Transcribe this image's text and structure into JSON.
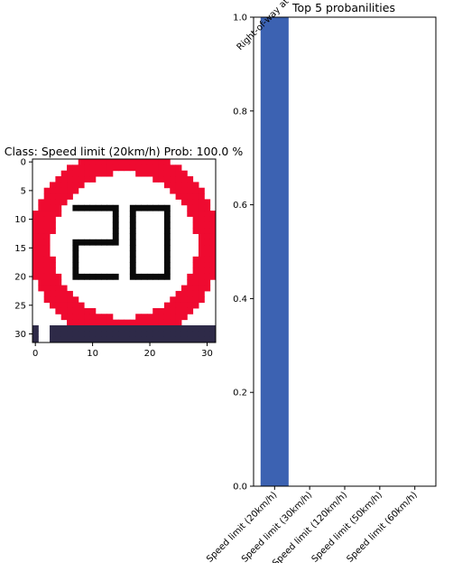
{
  "chart_data": [
    {
      "type": "image",
      "title": "Class: Speed limit (20km/h) Prob: 100.0 %",
      "xlim": [
        -0.5,
        31.5
      ],
      "ylim": [
        31.5,
        -0.5
      ],
      "xticks": [
        0,
        10,
        20,
        30
      ],
      "yticks": [
        0,
        5,
        10,
        15,
        20,
        25,
        30
      ],
      "xtick_labels": [
        "0",
        "10",
        "20",
        "30"
      ],
      "ytick_labels": [
        "0",
        "5",
        "10",
        "15",
        "20",
        "25",
        "30"
      ],
      "image": {
        "shape": [
          32,
          32
        ],
        "content": "red-ringed circular speed limit sign showing the number 20",
        "colors": {
          "ring": "#ef0a30",
          "background": "#ffffff",
          "digits": "#0a0a0a",
          "bottom_strip": "#2e2a48"
        }
      }
    },
    {
      "type": "bar",
      "title": "Top 5 probanilities",
      "categories": [
        "Speed limit (20km/h)",
        "Speed limit (30km/h)",
        "Speed limit (120km/h)",
        "Speed limit (50km/h)",
        "Speed limit (60km/h)"
      ],
      "values": [
        1.0,
        0.0,
        0.0,
        0.0,
        0.0
      ],
      "top_labels": [
        "Right-of-way at the next intersection",
        "",
        "",
        "",
        ""
      ],
      "ylim": [
        0,
        1.0
      ],
      "yticks": [
        0.0,
        0.2,
        0.4,
        0.6,
        0.8,
        1.0
      ],
      "ytick_labels": [
        "0.0",
        "0.2",
        "0.4",
        "0.6",
        "0.8",
        "1.0"
      ],
      "xlabel": "",
      "ylabel": "",
      "grid": false,
      "bar_color": "#3c62b2"
    }
  ]
}
